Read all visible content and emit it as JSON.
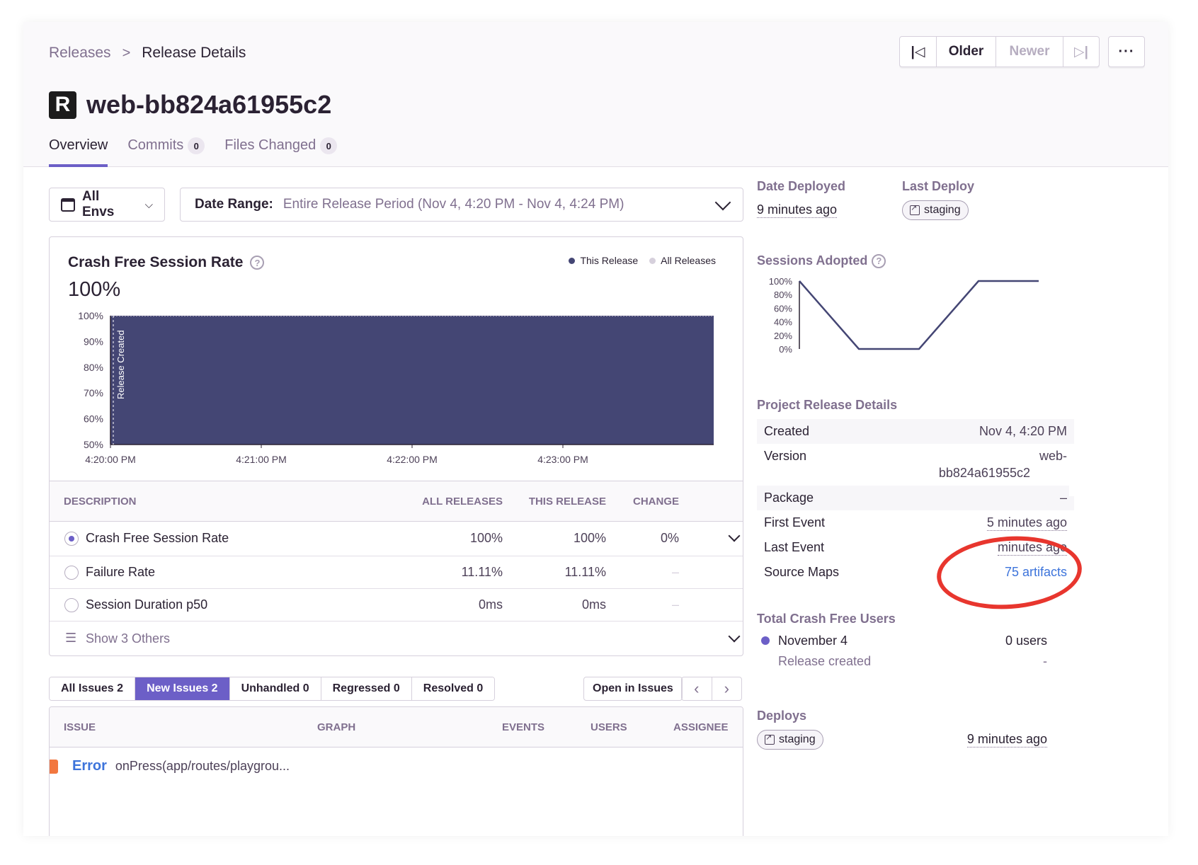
{
  "breadcrumbs": {
    "parent": "Releases",
    "separator": ">",
    "current": "Release Details"
  },
  "nav": {
    "first_icon": "|◁",
    "older": "Older",
    "newer": "Newer",
    "last_icon": "▷|",
    "more": "···"
  },
  "release": {
    "logo_letter": "R",
    "title": "web-bb824a61955c2"
  },
  "tabs": [
    {
      "label": "Overview",
      "count": null
    },
    {
      "label": "Commits",
      "count": "0"
    },
    {
      "label": "Files Changed",
      "count": "0"
    }
  ],
  "filters": {
    "env_label": "All Envs",
    "env_chevron": "⌵",
    "date_label": "Date Range:",
    "date_value": "Entire Release Period (Nov 4, 4:20 PM - Nov 4, 4:24 PM)"
  },
  "chart": {
    "title": "Crash Free Session Rate",
    "help_icon": "?",
    "big_value": "100%",
    "legend": [
      {
        "name": "This Release",
        "color": "#444674"
      },
      {
        "name": "All Releases",
        "color": "#d6d0dc"
      }
    ],
    "marker_label": "Release Created"
  },
  "chart_data": {
    "type": "area",
    "title": "Crash Free Session Rate",
    "x": [
      "4:20:00 PM",
      "4:21:00 PM",
      "4:22:00 PM",
      "4:23:00 PM"
    ],
    "x_ticks": [
      "4:20:00 PM",
      "4:21:00 PM",
      "4:22:00 PM",
      "4:23:00 PM"
    ],
    "y_ticks": [
      "100%",
      "90%",
      "80%",
      "70%",
      "60%",
      "50%"
    ],
    "ylim": [
      50,
      100
    ],
    "series": [
      {
        "name": "This Release",
        "values": [
          100,
          100,
          100,
          100
        ]
      }
    ],
    "legend": [
      "This Release",
      "All Releases"
    ],
    "annotations": [
      "Release Created"
    ]
  },
  "metrics": {
    "headers": {
      "description": "DESCRIPTION",
      "all": "ALL RELEASES",
      "this": "THIS RELEASE",
      "change": "CHANGE"
    },
    "rows": [
      {
        "label": "Crash Free Session Rate",
        "all": "100%",
        "this": "100%",
        "change": "0%"
      },
      {
        "label": "Failure Rate",
        "all": "11.11%",
        "this": "11.11%",
        "change": "–"
      },
      {
        "label": "Session Duration p50",
        "all": "0ms",
        "this": "0ms",
        "change": "–"
      }
    ],
    "show_others": "Show 3 Others",
    "list_icon": "☰"
  },
  "issue_tabs": [
    {
      "label": "All Issues",
      "count": "2"
    },
    {
      "label": "New Issues",
      "count": "2"
    },
    {
      "label": "Unhandled",
      "count": "0"
    },
    {
      "label": "Regressed",
      "count": "0"
    },
    {
      "label": "Resolved",
      "count": "0"
    }
  ],
  "issues": {
    "open_button": "Open in Issues",
    "prev": "‹",
    "next": "›",
    "headers": {
      "issue": "ISSUE",
      "graph": "GRAPH",
      "events": "EVENTS",
      "users": "USERS",
      "assignee": "ASSIGNEE"
    },
    "rows": [
      {
        "title": "Error",
        "subtitle": "onPress(app/routes/playgrou..."
      }
    ]
  },
  "sidebar": {
    "date_deployed_label": "Date Deployed",
    "date_deployed_value": "9 minutes ago",
    "last_deploy_label": "Last Deploy",
    "last_deploy_env": "staging",
    "sessions_adopted_label": "Sessions Adopted",
    "sessions_y_ticks": [
      "100%",
      "80%",
      "60%",
      "40%",
      "20%",
      "0%"
    ],
    "project_details_label": "Project Release Details",
    "details": [
      {
        "key": "Created",
        "value": "Nov 4, 4:20 PM"
      },
      {
        "key": "Version",
        "value": "web-",
        "value2": "bb824a61955c2"
      },
      {
        "key": "Package",
        "value": "–"
      },
      {
        "key": "First Event",
        "value": "5 minutes ago"
      },
      {
        "key": "Last Event",
        "value": "minutes ago"
      },
      {
        "key": "Source Maps",
        "value": "75 artifacts"
      }
    ],
    "crash_free_users_label": "Total Crash Free Users",
    "crash_free_date": "November 4",
    "crash_free_value": "0 users",
    "release_created": "Release created",
    "release_created_value": "-",
    "deploys_label": "Deploys",
    "deploy_env": "staging",
    "deploy_time": "9 minutes ago",
    "accent_color": "#6c5fc7",
    "annotation_color": "#e8362e"
  }
}
